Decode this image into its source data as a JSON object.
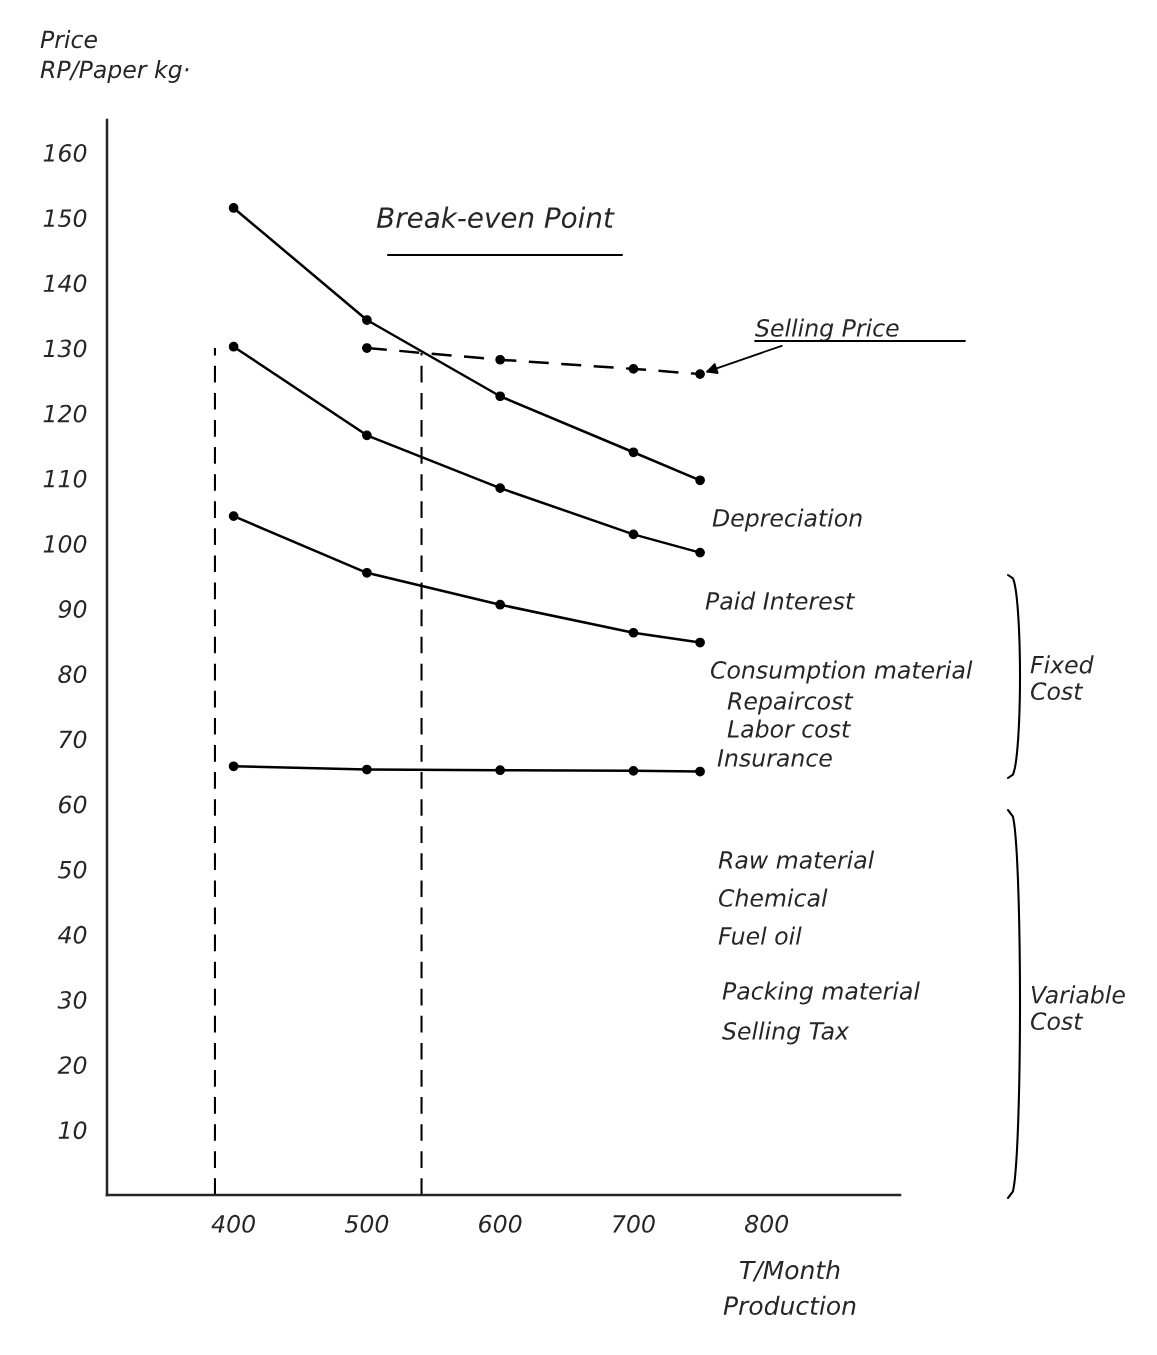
{
  "chart_data": {
    "type": "line",
    "title": "Break-even Point",
    "xlabel": "T/Month\nProduction",
    "ylabel": "Price\nRP/Paper kg·",
    "x": [
      400,
      500,
      600,
      700,
      750
    ],
    "series": [
      {
        "color": "#000000",
        "values": [
          151.5,
          134.3,
          122.6,
          114,
          109.7
        ]
      },
      {
        "color": "#000000",
        "values": [
          130.2,
          116.6,
          108.5,
          101.4,
          98.6
        ]
      },
      {
        "color": "#000000",
        "values": [
          104.2,
          95.5,
          90.6,
          86.3,
          84.8
        ]
      },
      {
        "color": "#000000",
        "values": [
          65.8,
          65.3,
          65.2,
          65.1,
          65.0
        ]
      },
      {
        "color": "#000000",
        "x": [
          500,
          600,
          700,
          750
        ],
        "values": [
          130,
          128.2,
          126.8,
          126
        ],
        "line_style": "dashed"
      }
    ],
    "xlim": [
      305,
      900
    ],
    "ylim": [
      0,
      165
    ],
    "xticks": [
      400,
      500,
      600,
      700,
      800
    ],
    "yticks": [
      10,
      20,
      30,
      40,
      50,
      60,
      70,
      80,
      90,
      100,
      110,
      120,
      130,
      140,
      150,
      160
    ],
    "ref_lines": [
      {
        "axis": "x",
        "value": 386,
        "line_style": "dashed"
      },
      {
        "axis": "x",
        "value": 541,
        "line_style": "dashed"
      }
    ],
    "marker": "circle",
    "line_style": "solid",
    "grid": false,
    "legend": false,
    "annotations": [
      {
        "text": "Selling Price",
        "x": 750,
        "y": 126
      },
      "Depreciation",
      "Paid Interest",
      "Consumption material",
      "Repaircost",
      "Labor cost",
      "Insurance",
      "Raw material",
      "Chemical",
      "Fuel oil",
      "Packing material",
      "Selling Tax",
      "Fixed\nCost",
      "Variable\nCost"
    ]
  }
}
